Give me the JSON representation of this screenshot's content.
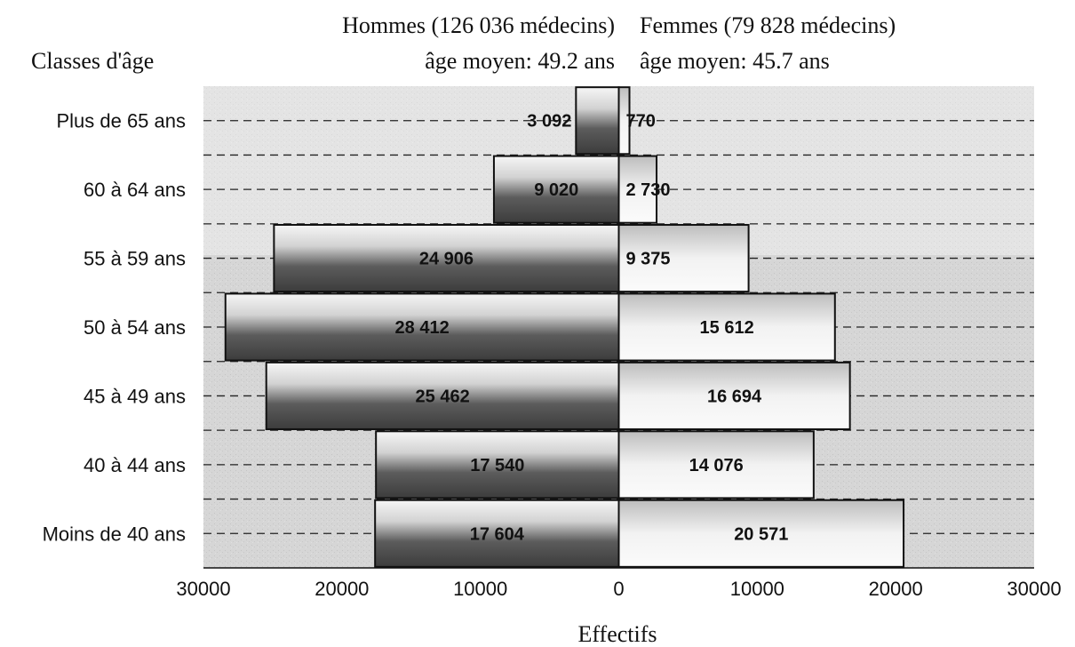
{
  "chart_data": {
    "type": "bar",
    "orientation": "horizontal",
    "subtype": "population-pyramid",
    "y_axis_title": "Classes d'âge",
    "categories": [
      "Plus de 65 ans",
      "60 à 64 ans",
      "55 à 59 ans",
      "50 à 54 ans",
      "45 à 49 ans",
      "40 à 44 ans",
      "Moins de 40 ans"
    ],
    "series": [
      {
        "name": "Hommes (126 036 médecins)",
        "subtitle": "âge moyen: 49.2 ans",
        "side": "left",
        "values": [
          3092,
          9020,
          24906,
          28412,
          25462,
          17540,
          17604
        ],
        "value_labels": [
          "3 092",
          "9 020",
          "24 906",
          "28 412",
          "25 462",
          "17 540",
          "17 604"
        ]
      },
      {
        "name": "Femmes (79 828 médecins)",
        "subtitle": "âge moyen: 45.7 ans",
        "side": "right",
        "values": [
          770,
          2730,
          9375,
          15612,
          16694,
          14076,
          20571
        ],
        "value_labels": [
          "770",
          "2 730",
          "9 375",
          "15 612",
          "16 694",
          "14 076",
          "20 571"
        ]
      }
    ],
    "xlabel": "Effectifs",
    "xlim": [
      -30000,
      30000
    ],
    "x_ticks": [
      -30000,
      -20000,
      -10000,
      0,
      10000,
      20000,
      30000
    ],
    "x_tick_labels": [
      "30000",
      "20000",
      "10000",
      "0",
      "10000",
      "20000",
      "30000"
    ],
    "grid": "dashed horizontal lines",
    "legend": "none",
    "colors": {
      "bar_light": "#f8f8f8",
      "bar_dark": "#4a4a4a",
      "plot_background": "#d3d3d3",
      "text": "#111111"
    }
  }
}
